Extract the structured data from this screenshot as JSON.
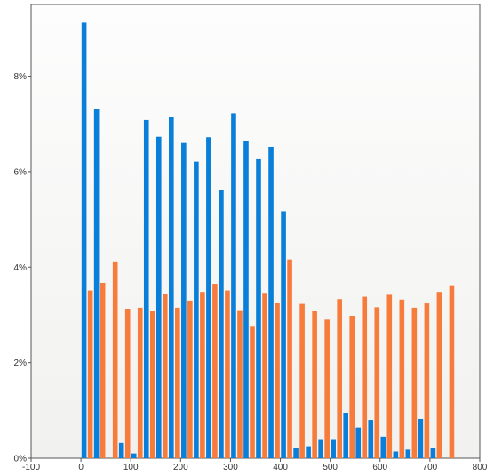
{
  "chart_data": {
    "type": "bar",
    "title": "",
    "xlabel": "",
    "ylabel": "",
    "xlim": [
      -100,
      800
    ],
    "ylim": [
      0,
      0.095
    ],
    "x_ticks": [
      {
        "value": -100,
        "label": "-100"
      },
      {
        "value": 0,
        "label": "0"
      },
      {
        "value": 100,
        "label": "100"
      },
      {
        "value": 200,
        "label": "200"
      },
      {
        "value": 300,
        "label": "300"
      },
      {
        "value": 400,
        "label": "400"
      },
      {
        "value": 500,
        "label": "500"
      },
      {
        "value": 600,
        "label": "600"
      },
      {
        "value": 700,
        "label": "700"
      },
      {
        "value": 800,
        "label": "800"
      }
    ],
    "y_ticks": [
      {
        "value": 0,
        "label": "0%"
      },
      {
        "value": 0.02,
        "label": "2%"
      },
      {
        "value": 0.04,
        "label": "4%"
      },
      {
        "value": 0.06,
        "label": "6%"
      },
      {
        "value": 0.08,
        "label": "8%"
      }
    ],
    "bin_width": 25,
    "grid": false,
    "legend": "none",
    "series": [
      {
        "color": "#0a7fd9",
        "x": [
          0,
          25,
          50,
          75,
          100,
          125,
          150,
          175,
          200,
          225,
          250,
          275,
          300,
          325,
          350,
          375,
          400,
          425,
          450,
          475,
          500,
          525,
          550,
          575,
          600,
          625,
          650,
          675,
          700,
          725
        ],
        "values": [
          0.0912,
          0.0732,
          0,
          0.0032,
          0.001,
          0.0708,
          0.0673,
          0.0714,
          0.066,
          0.0621,
          0.0672,
          0.0561,
          0.0722,
          0.0665,
          0.0626,
          0.0652,
          0.0517,
          0.0022,
          0.0025,
          0.004,
          0.004,
          0.0095,
          0.0064,
          0.008,
          0.0045,
          0.0014,
          0.0018,
          0.0082,
          0.0022,
          0
        ]
      },
      {
        "color": "#f77c3c",
        "x": [
          0,
          25,
          50,
          75,
          100,
          125,
          150,
          175,
          200,
          225,
          250,
          275,
          300,
          325,
          350,
          375,
          400,
          425,
          450,
          475,
          500,
          525,
          550,
          575,
          600,
          625,
          650,
          675,
          700,
          725
        ],
        "values": [
          0.0351,
          0.0367,
          0.0412,
          0.0313,
          0.0315,
          0.0309,
          0.0343,
          0.0315,
          0.033,
          0.0348,
          0.0365,
          0.0351,
          0.031,
          0.0277,
          0.0346,
          0.0326,
          0.0416,
          0.0323,
          0.0309,
          0.029,
          0.0333,
          0.0298,
          0.0338,
          0.0316,
          0.0342,
          0.0332,
          0.0315,
          0.0324,
          0.0348,
          0.0362
        ]
      }
    ]
  }
}
